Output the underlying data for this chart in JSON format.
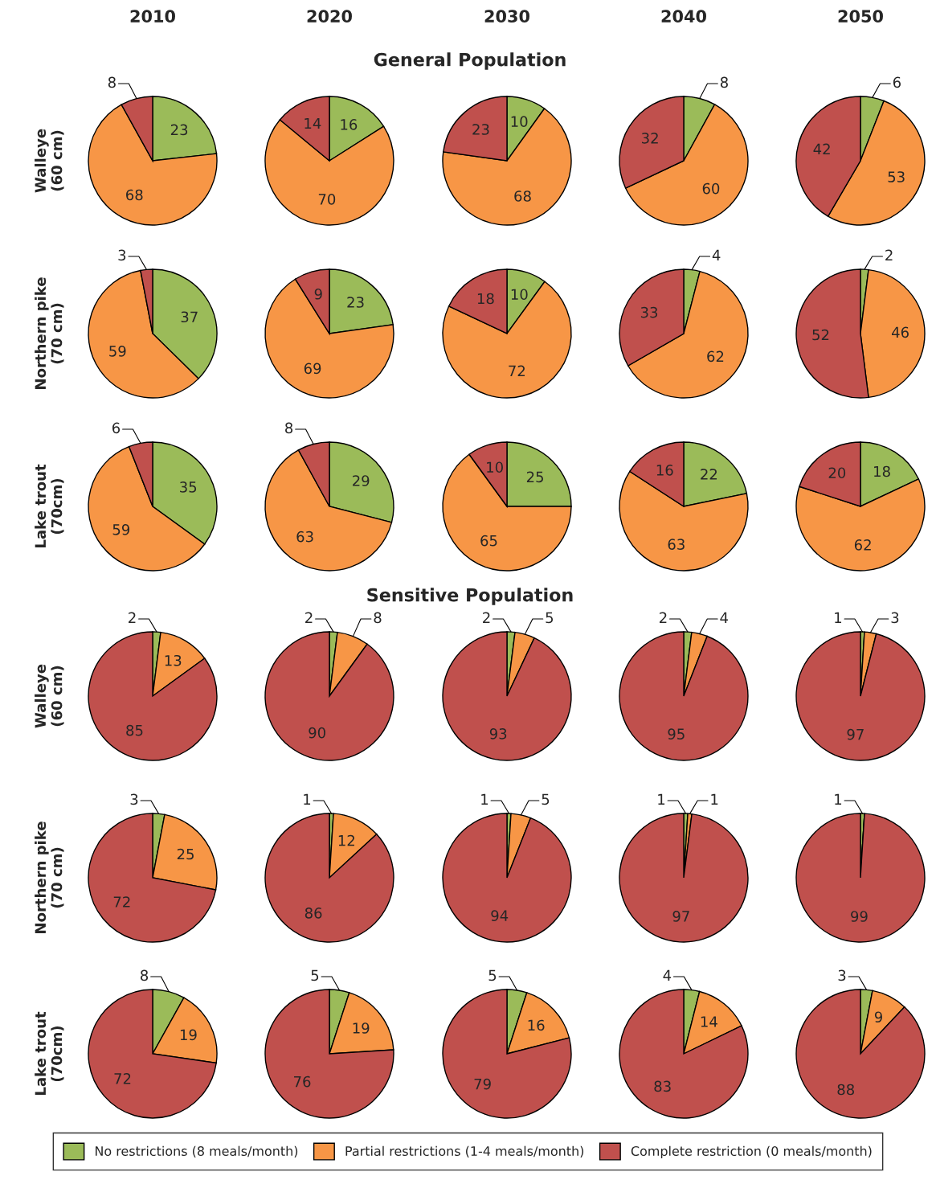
{
  "chart_data": [
    {
      "type": "pie",
      "title": "2010",
      "ylabel": "Walleye\n(60 cm)",
      "annotations": [
        "General Population"
      ],
      "categories": [
        null,
        null,
        null
      ],
      "values": [
        23,
        68,
        8
      ],
      "colors": [
        "#9bbb59",
        "#f79646",
        "#c0504d"
      ],
      "data_labels": true
    },
    {
      "type": "pie",
      "title": "2020",
      "categories": [
        null,
        null,
        null
      ],
      "values": [
        16,
        70,
        14
      ],
      "colors": [
        "#9bbb59",
        "#f79646",
        "#c0504d"
      ],
      "data_labels": true
    },
    {
      "type": "pie",
      "title": "2030",
      "categories": [
        null,
        null,
        null
      ],
      "values": [
        10,
        68,
        23
      ],
      "colors": [
        "#9bbb59",
        "#f79646",
        "#c0504d"
      ],
      "data_labels": true
    },
    {
      "type": "pie",
      "title": "2040",
      "categories": [
        null,
        null,
        null
      ],
      "values": [
        8,
        60,
        32
      ],
      "colors": [
        "#9bbb59",
        "#f79646",
        "#c0504d"
      ],
      "data_labels": true
    },
    {
      "type": "pie",
      "title": "2050",
      "categories": [
        null,
        null,
        null
      ],
      "values": [
        6,
        53,
        42
      ],
      "colors": [
        "#9bbb59",
        "#f79646",
        "#c0504d"
      ],
      "data_labels": true
    },
    {
      "type": "pie",
      "ylabel": "Northern pike\n(70 cm)",
      "categories": [
        null,
        null,
        null
      ],
      "values": [
        37,
        59,
        3
      ],
      "colors": [
        "#9bbb59",
        "#f79646",
        "#c0504d"
      ],
      "data_labels": true
    },
    {
      "type": "pie",
      "categories": [
        null,
        null,
        null
      ],
      "values": [
        23,
        69,
        9
      ],
      "colors": [
        "#9bbb59",
        "#f79646",
        "#c0504d"
      ],
      "data_labels": true
    },
    {
      "type": "pie",
      "categories": [
        null,
        null,
        null
      ],
      "values": [
        10,
        72,
        18
      ],
      "colors": [
        "#9bbb59",
        "#f79646",
        "#c0504d"
      ],
      "data_labels": true
    },
    {
      "type": "pie",
      "categories": [
        null,
        null,
        null
      ],
      "values": [
        4,
        62,
        33
      ],
      "colors": [
        "#9bbb59",
        "#f79646",
        "#c0504d"
      ],
      "data_labels": true
    },
    {
      "type": "pie",
      "categories": [
        null,
        null,
        null
      ],
      "values": [
        2,
        46,
        52
      ],
      "colors": [
        "#9bbb59",
        "#f79646",
        "#c0504d"
      ],
      "data_labels": true
    },
    {
      "type": "pie",
      "ylabel": "Lake trout\n(70cm)",
      "categories": [
        null,
        null,
        null
      ],
      "values": [
        35,
        59,
        6
      ],
      "colors": [
        "#9bbb59",
        "#f79646",
        "#c0504d"
      ],
      "data_labels": true
    },
    {
      "type": "pie",
      "categories": [
        null,
        null,
        null
      ],
      "values": [
        29,
        63,
        8
      ],
      "colors": [
        "#9bbb59",
        "#f79646",
        "#c0504d"
      ],
      "data_labels": true
    },
    {
      "type": "pie",
      "categories": [
        null,
        null,
        null
      ],
      "values": [
        25,
        65,
        10
      ],
      "colors": [
        "#9bbb59",
        "#f79646",
        "#c0504d"
      ],
      "data_labels": true
    },
    {
      "type": "pie",
      "categories": [
        null,
        null,
        null
      ],
      "values": [
        22,
        63,
        16
      ],
      "colors": [
        "#9bbb59",
        "#f79646",
        "#c0504d"
      ],
      "data_labels": true
    },
    {
      "type": "pie",
      "categories": [
        null,
        null,
        null
      ],
      "values": [
        18,
        62,
        20
      ],
      "colors": [
        "#9bbb59",
        "#f79646",
        "#c0504d"
      ],
      "data_labels": true
    },
    {
      "type": "pie",
      "ylabel": "Walleye\n(60 cm)",
      "annotations": [
        "Sensitive Population"
      ],
      "categories": [
        null,
        null,
        null
      ],
      "values": [
        2,
        13,
        85
      ],
      "colors": [
        "#9bbb59",
        "#f79646",
        "#c0504d"
      ],
      "data_labels": true
    },
    {
      "type": "pie",
      "categories": [
        null,
        null,
        null
      ],
      "values": [
        2,
        8,
        90
      ],
      "colors": [
        "#9bbb59",
        "#f79646",
        "#c0504d"
      ],
      "data_labels": true
    },
    {
      "type": "pie",
      "categories": [
        null,
        null,
        null
      ],
      "values": [
        2,
        5,
        93
      ],
      "colors": [
        "#9bbb59",
        "#f79646",
        "#c0504d"
      ],
      "data_labels": true
    },
    {
      "type": "pie",
      "categories": [
        null,
        null,
        null
      ],
      "values": [
        2,
        4,
        95
      ],
      "colors": [
        "#9bbb59",
        "#f79646",
        "#c0504d"
      ],
      "data_labels": true
    },
    {
      "type": "pie",
      "categories": [
        null,
        null,
        null
      ],
      "values": [
        1,
        3,
        97
      ],
      "colors": [
        "#9bbb59",
        "#f79646",
        "#c0504d"
      ],
      "data_labels": true
    },
    {
      "type": "pie",
      "ylabel": "Northern pike\n(70 cm)",
      "categories": [
        null,
        null,
        null
      ],
      "values": [
        3,
        25,
        72
      ],
      "colors": [
        "#9bbb59",
        "#f79646",
        "#c0504d"
      ],
      "data_labels": true
    },
    {
      "type": "pie",
      "categories": [
        null,
        null,
        null
      ],
      "values": [
        1,
        12,
        86
      ],
      "colors": [
        "#9bbb59",
        "#f79646",
        "#c0504d"
      ],
      "data_labels": true
    },
    {
      "type": "pie",
      "categories": [
        null,
        null,
        null
      ],
      "values": [
        1,
        5,
        94
      ],
      "colors": [
        "#9bbb59",
        "#f79646",
        "#c0504d"
      ],
      "data_labels": true
    },
    {
      "type": "pie",
      "categories": [
        null,
        null,
        null
      ],
      "values": [
        1,
        1,
        97
      ],
      "colors": [
        "#9bbb59",
        "#f79646",
        "#c0504d"
      ],
      "data_labels": true
    },
    {
      "type": "pie",
      "categories": [
        null,
        null,
        null
      ],
      "values": [
        1,
        0,
        99
      ],
      "colors": [
        "#9bbb59",
        "#f79646",
        "#c0504d"
      ],
      "value_labels": [
        "1",
        null,
        "99"
      ]
    },
    {
      "type": "pie",
      "ylabel": "Lake trout\n(70cm)",
      "categories": [
        null,
        null,
        null
      ],
      "values": [
        8,
        19,
        72
      ],
      "colors": [
        "#9bbb59",
        "#f79646",
        "#c0504d"
      ],
      "data_labels": true
    },
    {
      "type": "pie",
      "categories": [
        null,
        null,
        null
      ],
      "values": [
        5,
        19,
        76
      ],
      "colors": [
        "#9bbb59",
        "#f79646",
        "#c0504d"
      ],
      "data_labels": true
    },
    {
      "type": "pie",
      "categories": [
        null,
        null,
        null
      ],
      "values": [
        5,
        16,
        79
      ],
      "colors": [
        "#9bbb59",
        "#f79646",
        "#c0504d"
      ],
      "data_labels": true
    },
    {
      "type": "pie",
      "categories": [
        null,
        null,
        null
      ],
      "values": [
        4,
        14,
        83
      ],
      "colors": [
        "#9bbb59",
        "#f79646",
        "#c0504d"
      ],
      "data_labels": true
    },
    {
      "type": "pie",
      "legend": "bottom",
      "categories": [
        "No restrictions (8 meals/month)",
        "Partial restrictions (1-4 meals/month)",
        "Complete restriction (0 meals/month)"
      ],
      "values": [
        3,
        9,
        88
      ],
      "colors": [
        "#9bbb59",
        "#f79646",
        "#c0504d"
      ],
      "data_labels": true
    }
  ]
}
